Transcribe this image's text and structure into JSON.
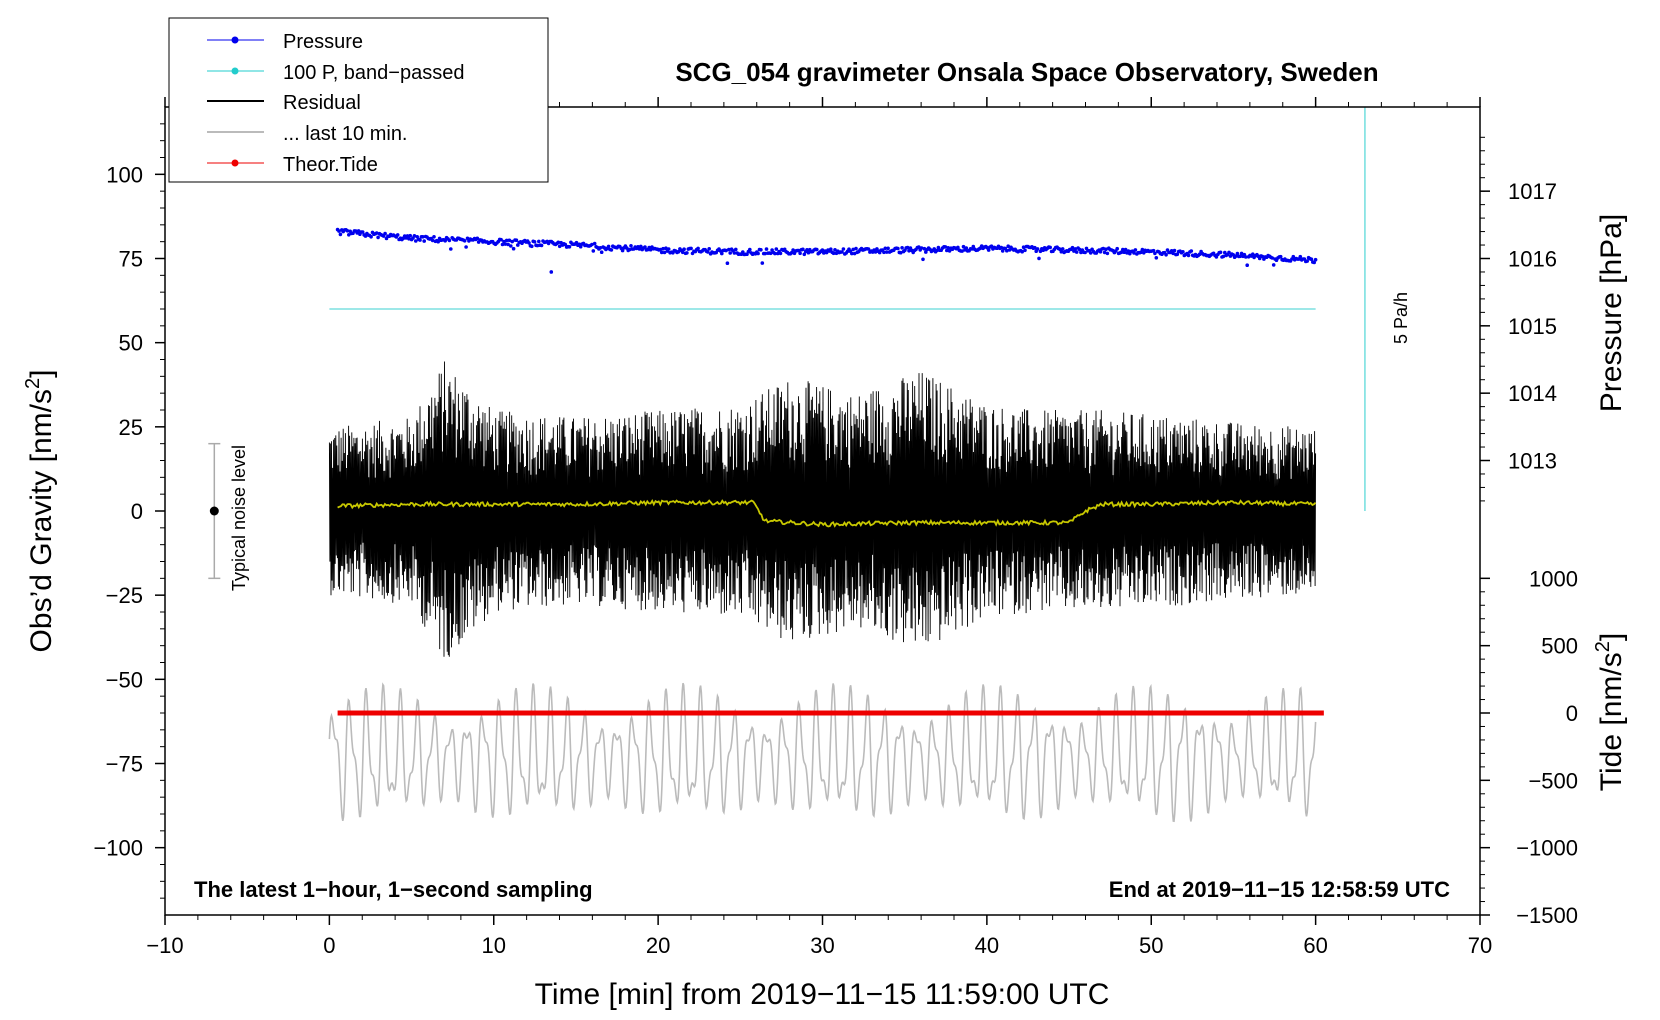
{
  "chart_data": {
    "type": "line",
    "title": "SCG_054 gravimeter Onsala Space Observatory, Sweden",
    "xlabel": "Time [min] from 2019−11−15 11:59:00 UTC",
    "ylabel": "Obs’d Gravity [nm/s",
    "ylabel_sup": "2",
    "ylabel_end": "]",
    "y2label": "Pressure [hPa]",
    "y3label": "Tide [nm/s",
    "y3label_sup": "2",
    "y3label_end": "]",
    "xlim": [
      -10,
      70
    ],
    "ylim": [
      -120,
      120
    ],
    "x_ticks": [
      -10,
      0,
      10,
      20,
      30,
      40,
      50,
      60,
      70
    ],
    "x_tick_labels": [
      "−10",
      "0",
      "10",
      "20",
      "30",
      "40",
      "50",
      "60",
      "70"
    ],
    "y_ticks": [
      100,
      75,
      50,
      25,
      0,
      -25,
      -50,
      -75,
      -100
    ],
    "y_tick_labels": [
      "100",
      "75",
      "50",
      "25",
      "0",
      "−25",
      "−50",
      "−75",
      "−100"
    ],
    "pressure_axis": {
      "ticks_hpa": [
        1017,
        1016,
        1015,
        1014,
        1013
      ],
      "tick_labels": [
        "1017",
        "1016",
        "1015",
        "1014",
        "1013"
      ],
      "gravity_at_1016": 75,
      "gravity_per_hpa": 20
    },
    "tide_axis": {
      "ticks": [
        1000,
        500,
        0,
        -500,
        -1000,
        -1500
      ],
      "tick_labels": [
        "1000",
        "500",
        "0",
        "−500",
        "−1000",
        "−1500"
      ],
      "gravity_at_0": -60,
      "gravity_per_500": 20
    },
    "legend": {
      "position": "top-left",
      "entries": [
        {
          "label": "Pressure",
          "color": "#0000ee",
          "marker": "dot"
        },
        {
          "label": "100 P, band−passed",
          "color": "#22cccc",
          "marker": "dot"
        },
        {
          "label": "Residual",
          "color": "#000000",
          "marker": "none"
        },
        {
          "label": "... last 10 min.",
          "color": "#bbbbbb",
          "marker": "none"
        },
        {
          "label": "Theor.Tide",
          "color": "#ee0000",
          "marker": "dot"
        }
      ]
    },
    "noise_bar": {
      "label": "Typical noise level",
      "x": -7,
      "center": 0,
      "half_range": 20
    },
    "rate_bar": {
      "label": "5 Pa/h",
      "x": 63,
      "y_from": 0,
      "y_to": 120
    },
    "band_passed_level": 60,
    "series": [
      {
        "name": "Pressure",
        "color": "#0000ee",
        "x": [
          0.5,
          5,
          10,
          15,
          20,
          25,
          30,
          35,
          40,
          45,
          50,
          55,
          60
        ],
        "values": [
          83,
          81,
          80,
          79,
          77.5,
          77,
          77,
          77.5,
          78,
          77.5,
          77,
          76,
          74.5
        ]
      },
      {
        "name": "Residual",
        "color": "#000000",
        "x_range": [
          0,
          60
        ],
        "envelope_x": [
          0,
          5,
          7,
          10,
          15,
          20,
          25,
          28,
          32,
          36,
          40,
          43,
          47,
          52,
          56,
          60
        ],
        "envelope": [
          25,
          28,
          45,
          30,
          28,
          30,
          32,
          40,
          35,
          42,
          32,
          30,
          30,
          28,
          26,
          25
        ]
      },
      {
        "name": "Residual smoothed",
        "color": "#c8c800",
        "x": [
          0.5,
          5,
          10,
          15,
          20,
          25,
          25.8,
          26.5,
          30,
          35,
          40,
          45,
          46,
          47,
          50,
          55,
          60
        ],
        "values": [
          1.5,
          2,
          2,
          2,
          2.5,
          2.5,
          2.5,
          -3,
          -4,
          -3.5,
          -3.5,
          -3.5,
          0,
          2,
          2,
          2.5,
          2
        ]
      },
      {
        "name": "... last 10 min.",
        "color": "#bbbbbb",
        "x_range": [
          0,
          60
        ],
        "center": -73,
        "amplitude": 20
      },
      {
        "name": "Theor.Tide",
        "color": "#ee0000",
        "x": [
          0.5,
          60.5
        ],
        "values": [
          -60,
          -60
        ]
      }
    ],
    "annotations": [
      {
        "text": "The latest 1−hour, 1−second sampling",
        "position": "bottom-left"
      },
      {
        "text": "End at 2019−11−15 12:58:59 UTC",
        "position": "bottom-right"
      }
    ]
  }
}
